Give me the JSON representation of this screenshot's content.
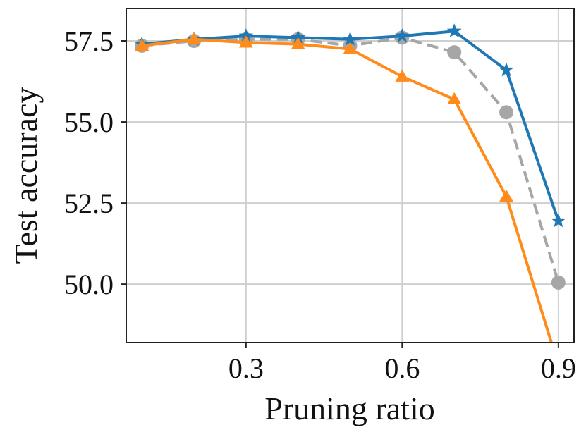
{
  "chart_data": {
    "type": "line",
    "title": "",
    "xlabel": "Pruning ratio",
    "ylabel": "Test accuracy",
    "xlim": [
      0.07,
      0.93
    ],
    "ylim": [
      48.2,
      58.5
    ],
    "xticks": [
      0.3,
      0.6,
      0.9
    ],
    "xtick_labels": [
      "0.3",
      "0.6",
      "0.9"
    ],
    "yticks": [
      50.0,
      52.5,
      55.0,
      57.5
    ],
    "ytick_labels": [
      "50.0",
      "52.5",
      "55.0",
      "57.5"
    ],
    "grid": true,
    "legend": "none",
    "x": [
      0.1,
      0.2,
      0.3,
      0.4,
      0.5,
      0.6,
      0.7,
      0.8,
      0.9
    ],
    "series": [
      {
        "color": "#a6a6a6",
        "marker": "circle",
        "linestyle": "dashed",
        "values": [
          57.35,
          57.5,
          57.55,
          57.55,
          57.35,
          57.6,
          57.15,
          55.3,
          50.05
        ]
      },
      {
        "color": "#1f77b4",
        "marker": "star",
        "linestyle": "solid",
        "values": [
          57.4,
          57.55,
          57.65,
          57.6,
          57.55,
          57.65,
          57.8,
          56.6,
          51.95
        ]
      },
      {
        "color": "#ff8c1a",
        "marker": "triangle",
        "linestyle": "solid",
        "values": [
          57.35,
          57.55,
          57.45,
          57.4,
          57.25,
          56.4,
          55.7,
          52.7,
          47.5
        ]
      }
    ]
  }
}
